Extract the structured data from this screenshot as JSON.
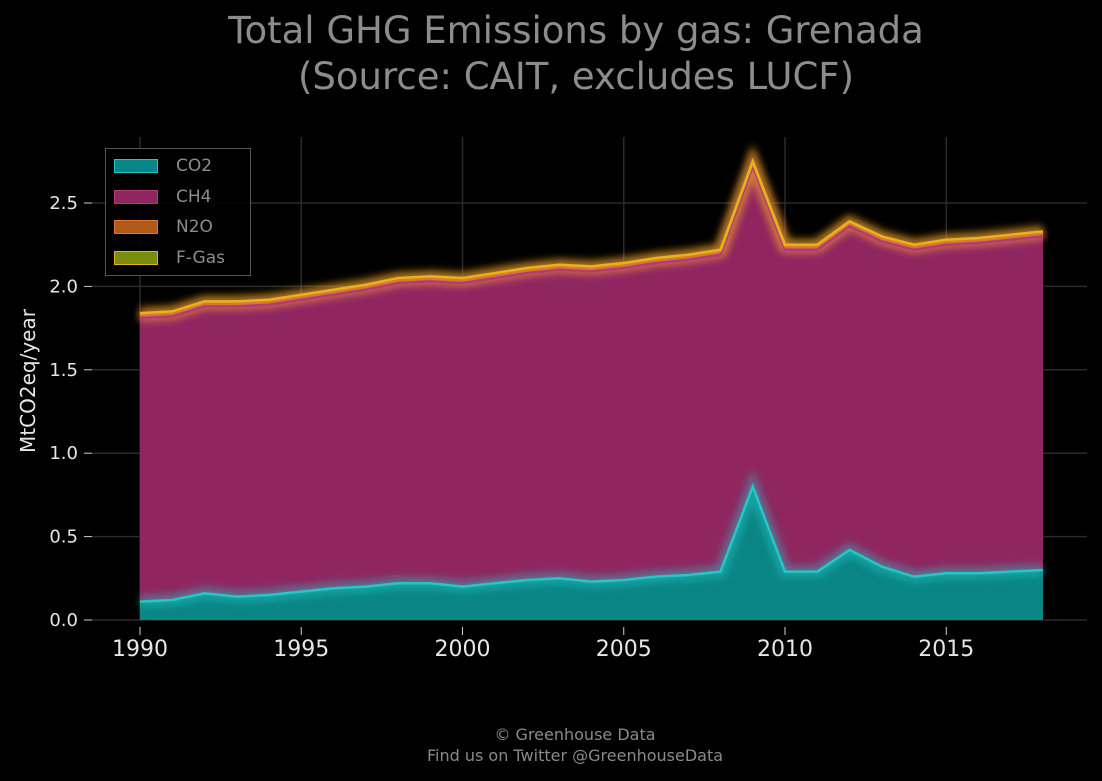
{
  "chart_data": {
    "type": "area",
    "stacked": true,
    "title_line1": "Total GHG Emissions by gas: Grenada",
    "title_line2": "(Source: CAIT, excludes LUCF)",
    "xlabel": "",
    "ylabel": "MtCO2eq/year",
    "xlim": [
      1990,
      2018
    ],
    "ylim": [
      0,
      2.85
    ],
    "x_ticks": [
      "1990",
      "1995",
      "2000",
      "2005",
      "2010",
      "2015"
    ],
    "y_ticks": [
      "0.0",
      "0.5",
      "1.0",
      "1.5",
      "2.0",
      "2.5"
    ],
    "grid": true,
    "legend_position": "top-left",
    "x": [
      1990,
      1991,
      1992,
      1993,
      1994,
      1995,
      1996,
      1997,
      1998,
      1999,
      2000,
      2001,
      2002,
      2003,
      2004,
      2005,
      2006,
      2007,
      2008,
      2009,
      2010,
      2011,
      2012,
      2013,
      2014,
      2015,
      2016,
      2017,
      2018
    ],
    "series": [
      {
        "name": "CO2",
        "color": "#0a8585",
        "edge": "#27c6c6",
        "values": [
          0.11,
          0.12,
          0.16,
          0.14,
          0.15,
          0.17,
          0.19,
          0.2,
          0.22,
          0.22,
          0.2,
          0.22,
          0.24,
          0.25,
          0.23,
          0.24,
          0.26,
          0.27,
          0.29,
          0.8,
          0.29,
          0.29,
          0.42,
          0.32,
          0.26,
          0.28,
          0.28,
          0.29,
          0.3
        ]
      },
      {
        "name": "CH4",
        "color": "#8f2660",
        "edge": "#b43a7c",
        "values": [
          1.7,
          1.7,
          1.72,
          1.74,
          1.74,
          1.75,
          1.76,
          1.78,
          1.8,
          1.81,
          1.82,
          1.83,
          1.84,
          1.85,
          1.86,
          1.87,
          1.88,
          1.89,
          1.9,
          1.92,
          1.93,
          1.93,
          1.94,
          1.95,
          1.96,
          1.97,
          1.98,
          1.99,
          2.0
        ]
      },
      {
        "name": "N2O",
        "color": "#b05a18",
        "edge": "#e0772c",
        "values": [
          0.02,
          0.02,
          0.02,
          0.02,
          0.02,
          0.02,
          0.02,
          0.02,
          0.02,
          0.02,
          0.02,
          0.02,
          0.02,
          0.02,
          0.02,
          0.02,
          0.02,
          0.02,
          0.02,
          0.02,
          0.02,
          0.02,
          0.02,
          0.02,
          0.02,
          0.02,
          0.02,
          0.02,
          0.02
        ]
      },
      {
        "name": "F-Gas",
        "color": "#7d8a10",
        "edge": "#e3b41c",
        "values": [
          0.01,
          0.01,
          0.01,
          0.01,
          0.01,
          0.01,
          0.01,
          0.01,
          0.01,
          0.01,
          0.01,
          0.01,
          0.01,
          0.01,
          0.01,
          0.01,
          0.01,
          0.01,
          0.01,
          0.01,
          0.01,
          0.01,
          0.01,
          0.01,
          0.01,
          0.01,
          0.01,
          0.01,
          0.01
        ]
      }
    ]
  },
  "footer": {
    "line1": "© Greenhouse Data",
    "line2": "Find us on Twitter @GreenhouseData"
  }
}
